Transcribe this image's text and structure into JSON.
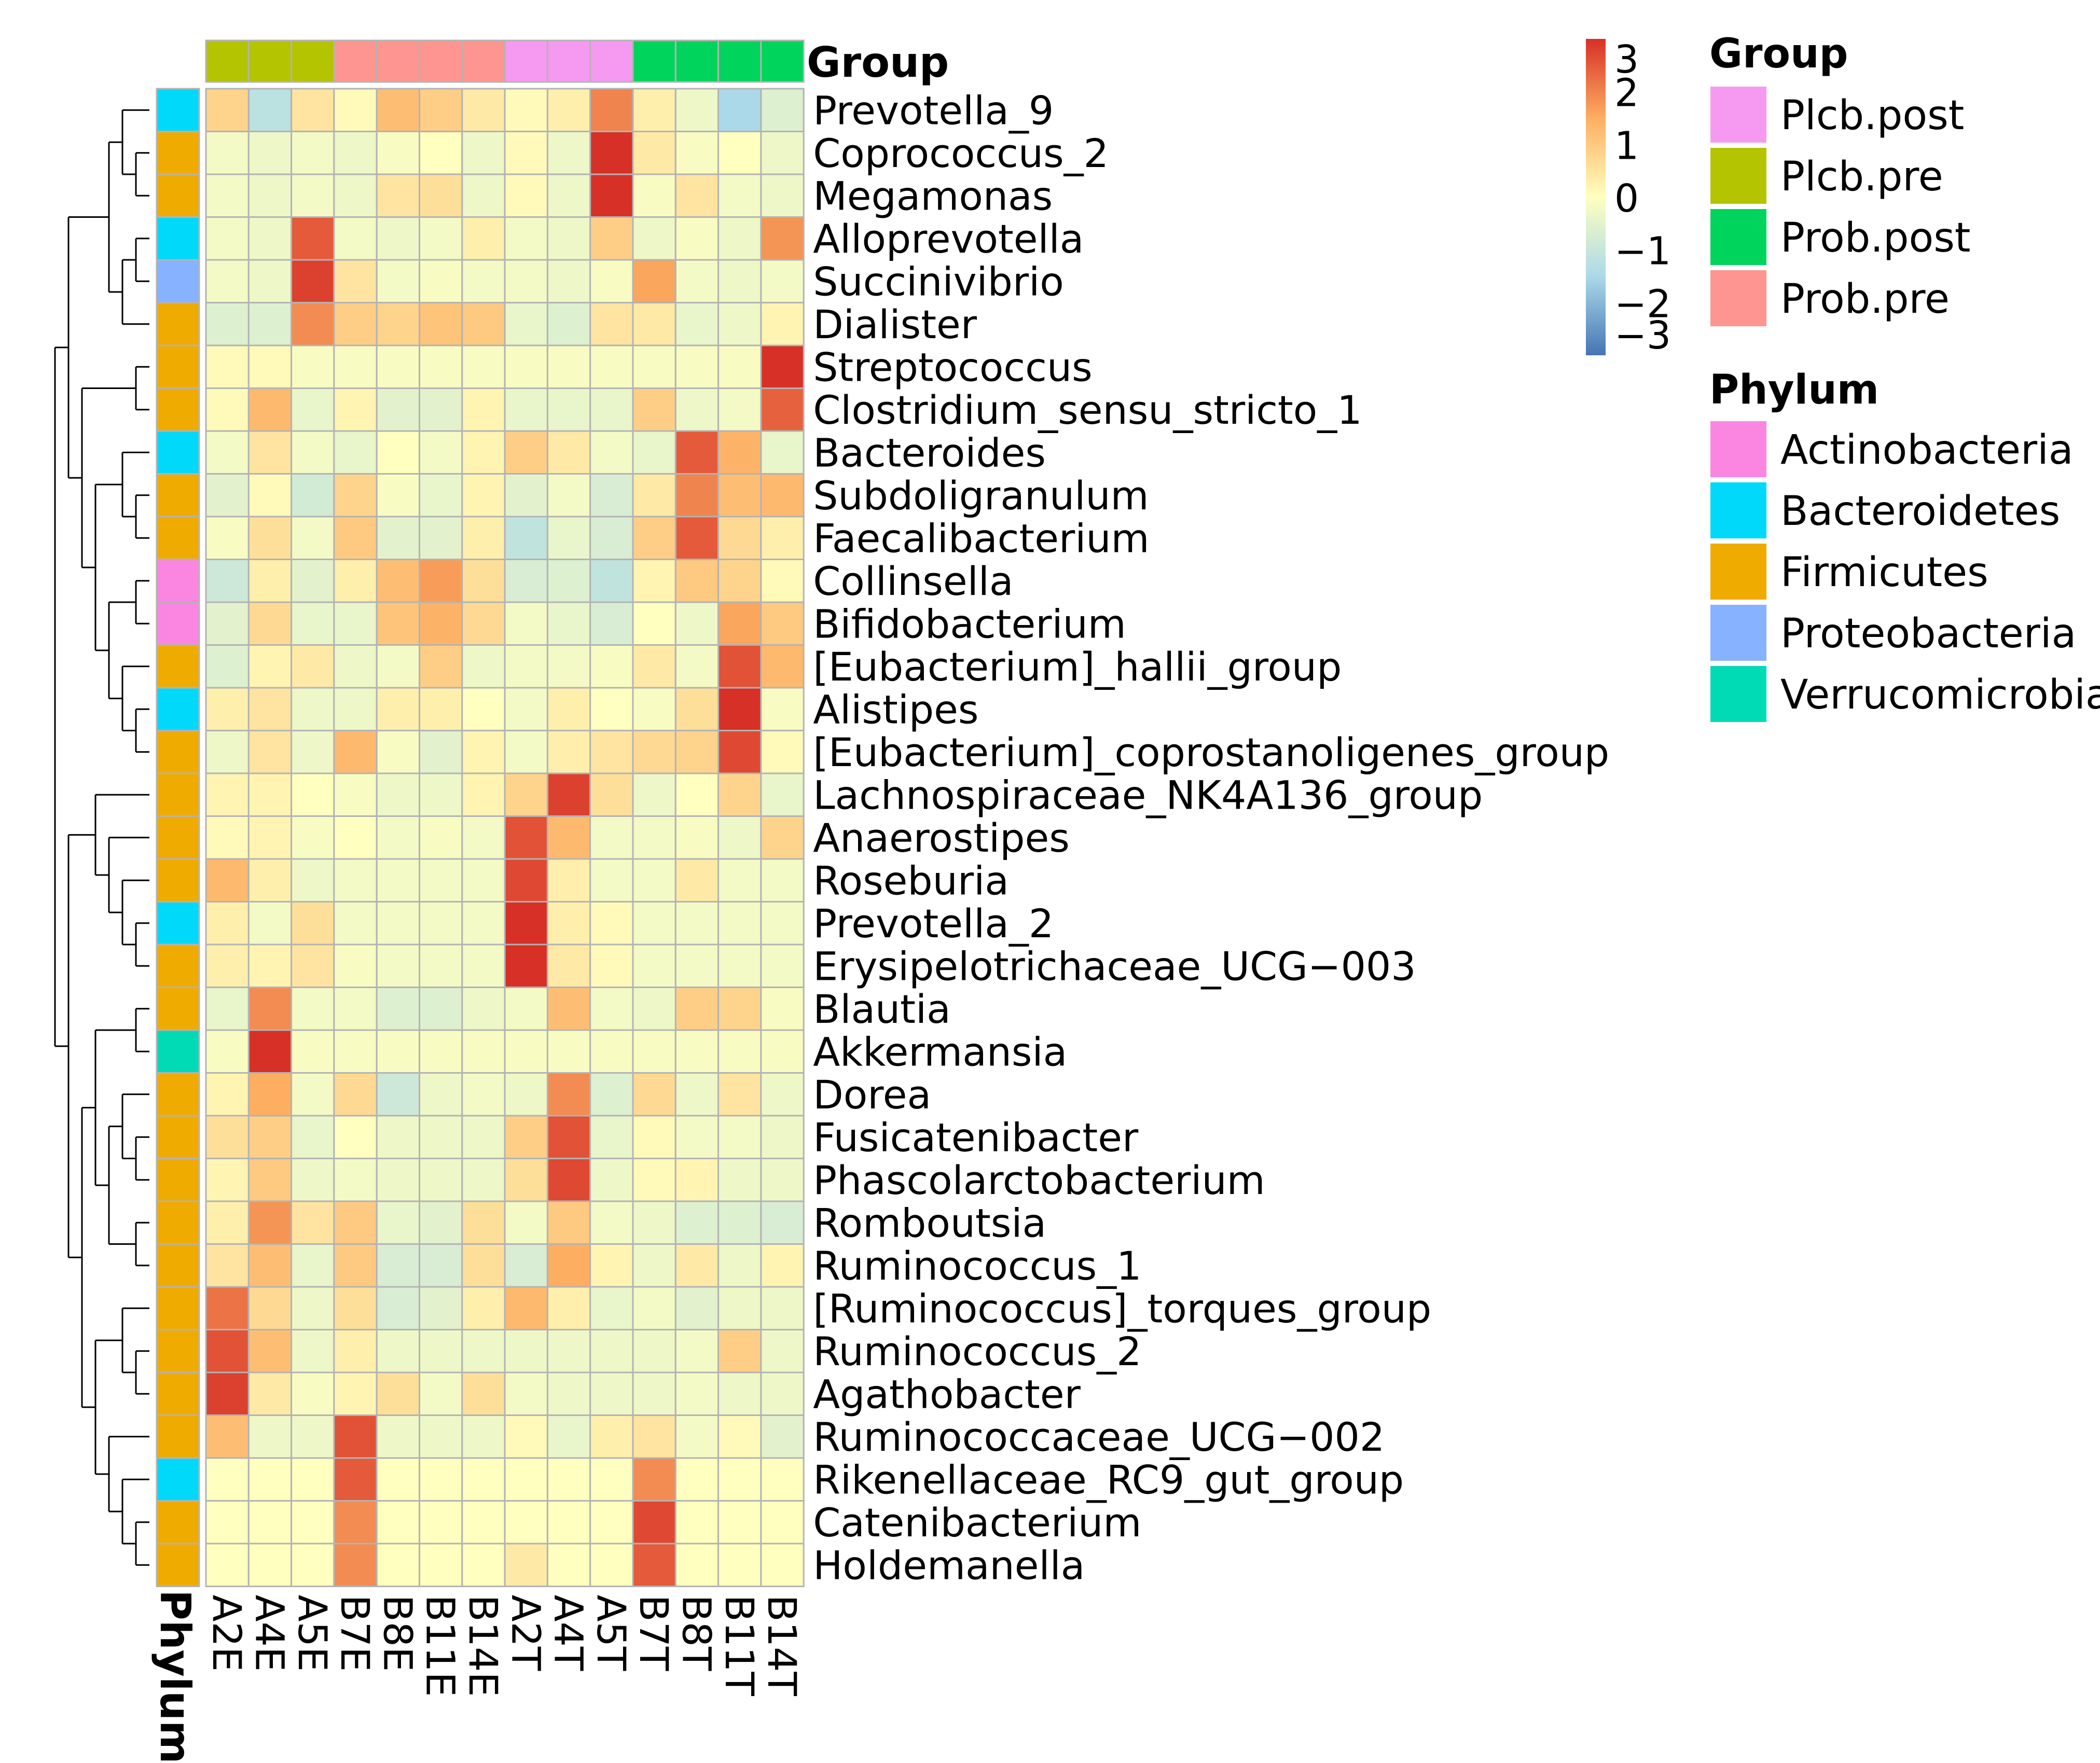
{
  "chart_data": {
    "type": "heatmap",
    "columns": [
      "A2E",
      "A4E",
      "A5E",
      "B7E",
      "B8E",
      "B11E",
      "B14E",
      "A2T",
      "A4T",
      "A5T",
      "B7T",
      "B8T",
      "B11T",
      "B14T"
    ],
    "column_groups": [
      "Plcb.pre",
      "Plcb.pre",
      "Plcb.pre",
      "Prob.pre",
      "Prob.pre",
      "Prob.pre",
      "Prob.pre",
      "Plcb.post",
      "Plcb.post",
      "Plcb.post",
      "Prob.post",
      "Prob.post",
      "Prob.post",
      "Prob.post"
    ],
    "rows": [
      "Prevotella_9",
      "Coprococcus_2",
      "Megamonas",
      "Alloprevotella",
      "Succinivibrio",
      "Dialister",
      "Streptococcus",
      "Clostridium_sensu_stricto_1",
      "Bacteroides",
      "Subdoligranulum",
      "Faecalibacterium",
      "Collinsella",
      "Bifidobacterium",
      "[Eubacterium]_hallii_group",
      "Alistipes",
      "[Eubacterium]_coprostanoligenes_group",
      "Lachnospiraceae_NK4A136_group",
      "Anaerostipes",
      "Roseburia",
      "Prevotella_2",
      "Erysipelotrichaceae_UCG−003",
      "Blautia",
      "Akkermansia",
      "Dorea",
      "Fusicatenibacter",
      "Phascolarctobacterium",
      "Romboutsia",
      "Ruminococcus_1",
      "[Ruminococcus]_torques_group",
      "Ruminococcus_2",
      "Agathobacter",
      "Ruminococcaceae_UCG−002",
      "Rikenellaceae_RC9_gut_group",
      "Catenibacterium",
      "Holdemanella"
    ],
    "row_phylum": [
      "Bacteroidetes",
      "Firmicutes",
      "Firmicutes",
      "Bacteroidetes",
      "Proteobacteria",
      "Firmicutes",
      "Firmicutes",
      "Firmicutes",
      "Bacteroidetes",
      "Firmicutes",
      "Firmicutes",
      "Actinobacteria",
      "Actinobacteria",
      "Firmicutes",
      "Bacteroidetes",
      "Firmicutes",
      "Firmicutes",
      "Firmicutes",
      "Firmicutes",
      "Bacteroidetes",
      "Firmicutes",
      "Firmicutes",
      "Verrucomicrobia",
      "Firmicutes",
      "Firmicutes",
      "Firmicutes",
      "Firmicutes",
      "Firmicutes",
      "Firmicutes",
      "Firmicutes",
      "Firmicutes",
      "Firmicutes",
      "Bacteroidetes",
      "Firmicutes",
      "Firmicutes"
    ],
    "values": [
      [
        0.8,
        -1.2,
        0.5,
        0.1,
        1.2,
        0.9,
        0.4,
        0.1,
        0.3,
        2.0,
        0.3,
        -0.3,
        -1.5,
        -0.6
      ],
      [
        -0.2,
        -0.3,
        -0.2,
        -0.3,
        -0.1,
        0.0,
        -0.3,
        0.1,
        -0.3,
        3.3,
        0.4,
        -0.1,
        0.0,
        -0.3
      ],
      [
        -0.2,
        -0.3,
        -0.2,
        -0.3,
        0.5,
        0.6,
        -0.3,
        0.1,
        -0.3,
        3.0,
        -0.1,
        0.5,
        -0.2,
        -0.3
      ],
      [
        -0.2,
        -0.3,
        2.5,
        -0.2,
        -0.3,
        -0.2,
        0.3,
        -0.2,
        -0.3,
        0.9,
        -0.3,
        -0.1,
        -0.3,
        1.8
      ],
      [
        -0.2,
        -0.3,
        2.8,
        0.5,
        -0.2,
        -0.1,
        -0.2,
        -0.2,
        -0.3,
        -0.1,
        1.6,
        -0.2,
        -0.3,
        -0.2
      ],
      [
        -0.6,
        -0.6,
        1.9,
        0.9,
        0.8,
        1.1,
        1.0,
        -0.4,
        -0.6,
        0.5,
        0.4,
        -0.4,
        -0.3,
        0.2
      ],
      [
        0.1,
        0.1,
        -0.1,
        -0.1,
        -0.1,
        -0.1,
        -0.1,
        -0.1,
        -0.1,
        -0.1,
        -0.1,
        -0.1,
        -0.1,
        3.4
      ],
      [
        0.1,
        1.3,
        -0.4,
        0.2,
        -0.5,
        -0.5,
        0.2,
        -0.4,
        -0.4,
        -0.4,
        0.9,
        -0.3,
        -0.2,
        2.4
      ],
      [
        -0.2,
        0.5,
        -0.2,
        -0.4,
        0.0,
        -0.2,
        0.2,
        0.9,
        0.4,
        -0.2,
        -0.4,
        2.5,
        1.4,
        -0.4
      ],
      [
        -0.5,
        0.1,
        -0.8,
        0.8,
        -0.1,
        -0.4,
        0.2,
        -0.5,
        -0.2,
        -0.7,
        0.4,
        2.0,
        1.2,
        1.3
      ],
      [
        -0.1,
        0.6,
        -0.2,
        1.0,
        -0.5,
        -0.5,
        0.3,
        -1.1,
        -0.4,
        -0.7,
        0.9,
        2.5,
        0.7,
        0.3
      ],
      [
        -0.9,
        0.3,
        -0.5,
        0.3,
        1.2,
        1.7,
        0.6,
        -0.7,
        -0.6,
        -1.1,
        0.2,
        1.0,
        0.8,
        0.1
      ],
      [
        -0.5,
        0.7,
        -0.4,
        -0.4,
        1.1,
        1.4,
        0.7,
        -0.2,
        -0.4,
        -0.7,
        0.0,
        -0.3,
        1.6,
        1.0
      ],
      [
        -0.6,
        0.2,
        0.4,
        -0.3,
        -0.2,
        0.9,
        -0.3,
        -0.2,
        -0.2,
        -0.1,
        0.4,
        -0.2,
        2.6,
        1.3
      ],
      [
        0.3,
        0.5,
        -0.3,
        -0.3,
        0.3,
        0.3,
        0.0,
        -0.2,
        0.3,
        0.0,
        -0.1,
        0.6,
        3.3,
        -0.1
      ],
      [
        -0.3,
        0.5,
        -0.3,
        1.3,
        -0.1,
        -0.5,
        0.2,
        -0.2,
        0.3,
        0.5,
        0.7,
        0.8,
        2.7,
        0.1
      ],
      [
        0.2,
        0.2,
        0.0,
        -0.1,
        -0.3,
        -0.3,
        0.2,
        0.8,
        2.8,
        0.6,
        -0.3,
        0.0,
        0.8,
        -0.4
      ],
      [
        0.1,
        0.2,
        -0.1,
        0.0,
        -0.2,
        -0.1,
        -0.2,
        2.6,
        1.3,
        -0.2,
        -0.2,
        -0.1,
        -0.3,
        0.8
      ],
      [
        1.3,
        0.3,
        -0.3,
        -0.2,
        -0.2,
        -0.2,
        -0.2,
        2.7,
        0.3,
        -0.2,
        -0.2,
        0.4,
        -0.2,
        -0.2
      ],
      [
        0.3,
        -0.2,
        0.6,
        -0.2,
        -0.2,
        -0.2,
        -0.2,
        3.5,
        0.3,
        0.1,
        -0.2,
        -0.2,
        -0.2,
        -0.2
      ],
      [
        0.3,
        0.2,
        0.5,
        -0.1,
        -0.2,
        -0.2,
        -0.2,
        3.4,
        0.4,
        0.1,
        -0.2,
        -0.2,
        -0.2,
        -0.2
      ],
      [
        -0.4,
        1.9,
        -0.2,
        -0.2,
        -0.6,
        -0.6,
        -0.3,
        -0.2,
        1.2,
        -0.2,
        -0.3,
        0.9,
        0.8,
        -0.1
      ],
      [
        -0.1,
        3.5,
        -0.1,
        -0.1,
        -0.1,
        -0.1,
        -0.1,
        -0.1,
        -0.1,
        -0.1,
        -0.1,
        -0.1,
        -0.1,
        -0.1
      ],
      [
        0.2,
        1.5,
        -0.2,
        0.7,
        -0.9,
        -0.3,
        -0.2,
        -0.3,
        1.9,
        -0.6,
        0.7,
        -0.3,
        0.5,
        -0.3
      ],
      [
        0.6,
        0.9,
        -0.4,
        0.0,
        -0.3,
        -0.3,
        -0.3,
        0.9,
        2.6,
        -0.4,
        0.1,
        -0.2,
        -0.2,
        -0.3
      ],
      [
        0.2,
        1.0,
        -0.3,
        -0.2,
        -0.3,
        -0.3,
        -0.3,
        0.6,
        2.7,
        -0.3,
        0.1,
        0.2,
        -0.3,
        -0.3
      ],
      [
        0.3,
        1.8,
        0.5,
        1.0,
        -0.4,
        -0.5,
        0.6,
        -0.2,
        1.0,
        -0.2,
        -0.3,
        -0.6,
        -0.6,
        -0.7
      ],
      [
        0.5,
        1.2,
        -0.4,
        1.0,
        -0.7,
        -0.7,
        0.6,
        -0.7,
        1.5,
        0.2,
        -0.3,
        0.4,
        -0.3,
        0.2
      ],
      [
        2.2,
        0.7,
        -0.3,
        0.6,
        -0.7,
        -0.5,
        0.3,
        1.3,
        0.3,
        -0.4,
        -0.2,
        -0.5,
        -0.3,
        -0.3
      ],
      [
        2.6,
        1.2,
        -0.3,
        0.3,
        -0.3,
        -0.3,
        -0.3,
        -0.3,
        -0.3,
        -0.3,
        -0.3,
        -0.2,
        0.9,
        -0.3
      ],
      [
        2.8,
        0.4,
        -0.1,
        0.2,
        0.6,
        -0.2,
        0.6,
        -0.2,
        -0.3,
        -0.3,
        -0.3,
        -0.2,
        -0.3,
        -0.3
      ],
      [
        1.2,
        -0.3,
        -0.3,
        2.6,
        -0.3,
        -0.3,
        -0.3,
        0.1,
        -0.4,
        0.3,
        0.5,
        -0.2,
        0.1,
        -0.5
      ],
      [
        0.0,
        0.0,
        0.0,
        2.5,
        0.0,
        0.0,
        0.0,
        0.0,
        0.0,
        0.0,
        1.9,
        0.0,
        0.0,
        0.0
      ],
      [
        0.0,
        0.0,
        0.0,
        1.9,
        0.0,
        0.0,
        0.0,
        0.0,
        0.0,
        0.0,
        2.7,
        0.0,
        0.0,
        0.0
      ],
      [
        0.0,
        0.0,
        0.0,
        1.9,
        0.0,
        0.0,
        0.0,
        0.4,
        0.0,
        0.0,
        2.5,
        0.0,
        0.0,
        0.0
      ]
    ],
    "scale": {
      "min": -3,
      "max": 3,
      "ticks": [
        "3",
        "2",
        "1",
        "0",
        "−1",
        "−2",
        "−3"
      ]
    },
    "annotation_label_top": "Group",
    "annotation_label_side": "Phylum",
    "legend": {
      "group_title": "Group",
      "groups": [
        {
          "name": "Plcb.post",
          "color": "#f59af0"
        },
        {
          "name": "Plcb.pre",
          "color": "#b4c400"
        },
        {
          "name": "Prob.post",
          "color": "#00d45c"
        },
        {
          "name": "Prob.pre",
          "color": "#fe9590"
        }
      ],
      "phylum_title": "Phylum",
      "phyla": [
        {
          "name": "Actinobacteria",
          "color": "#fb86e2"
        },
        {
          "name": "Bacteroidetes",
          "color": "#00d9fa"
        },
        {
          "name": "Firmicutes",
          "color": "#f0ab00"
        },
        {
          "name": "Proteobacteria",
          "color": "#87b2ff"
        },
        {
          "name": "Verrucomicrobia",
          "color": "#00dbb5"
        }
      ]
    },
    "dendrogram": "hierarchical clustering of rows (left)"
  }
}
